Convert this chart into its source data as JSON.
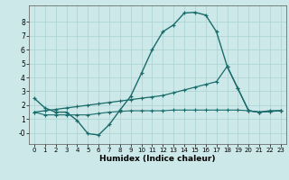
{
  "xlabel": "Humidex (Indice chaleur)",
  "bg_color": "#cde8e8",
  "grid_color": "#b0d4d4",
  "line_color": "#1a6b6b",
  "xlim": [
    -0.5,
    23.5
  ],
  "ylim": [
    -0.8,
    9.2
  ],
  "xticks": [
    0,
    1,
    2,
    3,
    4,
    5,
    6,
    7,
    8,
    9,
    10,
    11,
    12,
    13,
    14,
    15,
    16,
    17,
    18,
    19,
    20,
    21,
    22,
    23
  ],
  "yticks": [
    0,
    1,
    2,
    3,
    4,
    5,
    6,
    7,
    8
  ],
  "ytick_labels": [
    "-0",
    "1",
    "2",
    "3",
    "4",
    "5",
    "6",
    "7",
    "8"
  ],
  "line1_x": [
    0,
    1,
    2,
    3,
    4,
    5,
    6,
    7,
    8,
    9,
    10,
    11,
    12,
    13,
    14,
    15,
    16,
    17,
    18,
    19,
    20,
    21,
    22,
    23
  ],
  "line1_y": [
    2.5,
    1.8,
    1.5,
    1.5,
    0.9,
    -0.05,
    -0.15,
    0.6,
    1.65,
    2.65,
    4.3,
    6.0,
    7.3,
    7.8,
    8.65,
    8.7,
    8.5,
    7.3,
    4.8,
    3.2,
    1.6,
    1.5,
    1.6,
    1.6
  ],
  "line2_x": [
    0,
    1,
    2,
    3,
    4,
    5,
    6,
    7,
    8,
    9,
    10,
    11,
    12,
    13,
    14,
    15,
    16,
    17,
    18,
    19,
    20,
    21,
    22,
    23
  ],
  "line2_y": [
    1.5,
    1.6,
    1.7,
    1.8,
    1.9,
    2.0,
    2.1,
    2.2,
    2.3,
    2.4,
    2.5,
    2.6,
    2.7,
    2.9,
    3.1,
    3.3,
    3.5,
    3.7,
    4.8,
    3.2,
    1.6,
    1.5,
    1.55,
    1.6
  ],
  "line3_x": [
    0,
    1,
    2,
    3,
    4,
    5,
    6,
    7,
    8,
    9,
    10,
    11,
    12,
    13,
    14,
    15,
    16,
    17,
    18,
    19,
    20,
    21,
    22,
    23
  ],
  "line3_y": [
    1.5,
    1.3,
    1.3,
    1.3,
    1.3,
    1.3,
    1.4,
    1.5,
    1.55,
    1.6,
    1.6,
    1.6,
    1.6,
    1.65,
    1.65,
    1.65,
    1.65,
    1.65,
    1.65,
    1.65,
    1.6,
    1.5,
    1.55,
    1.6
  ]
}
